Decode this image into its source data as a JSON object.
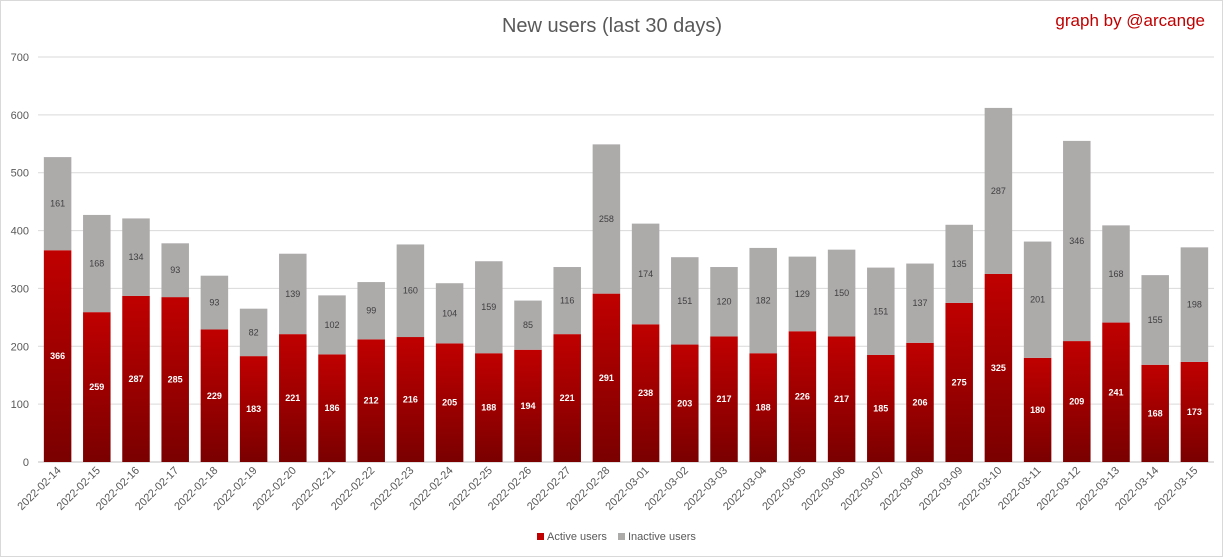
{
  "chart_data": {
    "type": "bar",
    "stacked": true,
    "title": "New users (last 30 days)",
    "credit": "graph by @arcange",
    "xlabel": "",
    "ylabel": "",
    "ylim": [
      0,
      700
    ],
    "yticks": [
      0,
      100,
      200,
      300,
      400,
      500,
      600,
      700
    ],
    "grid": true,
    "legend_position": "bottom",
    "colors": {
      "active": "#c00000",
      "active_dark": "#7a0000",
      "inactive": "#adaaaa"
    },
    "categories": [
      "2022-02-14",
      "2022-02-15",
      "2022-02-16",
      "2022-02-17",
      "2022-02-18",
      "2022-02-19",
      "2022-02-20",
      "2022-02-21",
      "2022-02-22",
      "2022-02-23",
      "2022-02-24",
      "2022-02-25",
      "2022-02-26",
      "2022-02-27",
      "2022-02-28",
      "2022-03-01",
      "2022-03-02",
      "2022-03-03",
      "2022-03-04",
      "2022-03-05",
      "2022-03-06",
      "2022-03-07",
      "2022-03-08",
      "2022-03-09",
      "2022-03-10",
      "2022-03-11",
      "2022-03-12",
      "2022-03-13",
      "2022-03-14",
      "2022-03-15"
    ],
    "series": [
      {
        "name": "Active users",
        "values": [
          366,
          259,
          287,
          285,
          229,
          183,
          221,
          186,
          212,
          216,
          205,
          188,
          194,
          221,
          291,
          238,
          203,
          217,
          188,
          226,
          217,
          185,
          206,
          275,
          325,
          180,
          209,
          241,
          168,
          173
        ]
      },
      {
        "name": "Inactive users",
        "values": [
          161,
          168,
          134,
          93,
          93,
          82,
          139,
          102,
          99,
          160,
          104,
          159,
          85,
          116,
          258,
          174,
          151,
          120,
          182,
          129,
          150,
          151,
          137,
          135,
          287,
          201,
          346,
          168,
          155,
          198
        ]
      }
    ]
  }
}
